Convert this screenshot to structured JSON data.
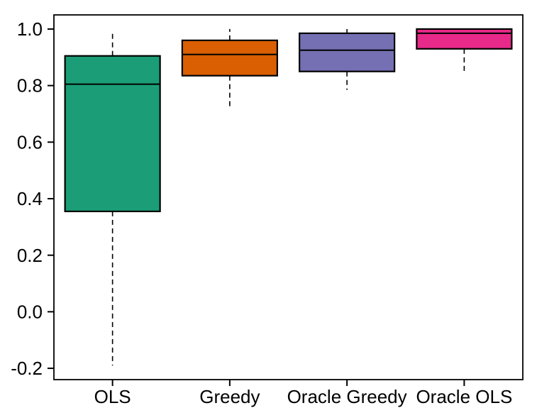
{
  "chart_data": {
    "type": "boxplot",
    "title": "",
    "xlabel": "",
    "ylabel": "",
    "ylim": [
      -0.24,
      1.05
    ],
    "grid": false,
    "legend": null,
    "yticks": {
      "values": [
        1.0,
        0.8,
        0.6,
        0.4,
        0.2,
        0.0,
        -0.2
      ],
      "labels": [
        "1.0",
        "0.8",
        "0.6",
        "0.4",
        "0.2",
        "0.0",
        "-0.2"
      ]
    },
    "categories": [
      "OLS",
      "Greedy",
      "Oracle Greedy",
      "Oracle OLS"
    ],
    "series": [
      {
        "label": "OLS",
        "color": "#1B9E77",
        "whisker_low": -0.19,
        "q1": 0.355,
        "median": 0.805,
        "q3": 0.905,
        "whisker_high": 0.995
      },
      {
        "label": "Greedy",
        "color": "#D95F02",
        "whisker_low": 0.72,
        "q1": 0.835,
        "median": 0.91,
        "q3": 0.96,
        "whisker_high": 1.0
      },
      {
        "label": "Oracle Greedy",
        "color": "#7570B3",
        "whisker_low": 0.785,
        "q1": 0.85,
        "median": 0.925,
        "q3": 0.985,
        "whisker_high": 1.0
      },
      {
        "label": "Oracle OLS",
        "color": "#E7298A",
        "whisker_low": 0.845,
        "q1": 0.93,
        "median": 0.985,
        "q3": 1.0,
        "whisker_high": 1.0
      }
    ],
    "style": {
      "whisker_line_style": "dashed",
      "whisker_caps": false,
      "box_border_color": "#000000",
      "median_color": "#000000",
      "axis_color": "#000000",
      "background_color": "#ffffff"
    }
  }
}
